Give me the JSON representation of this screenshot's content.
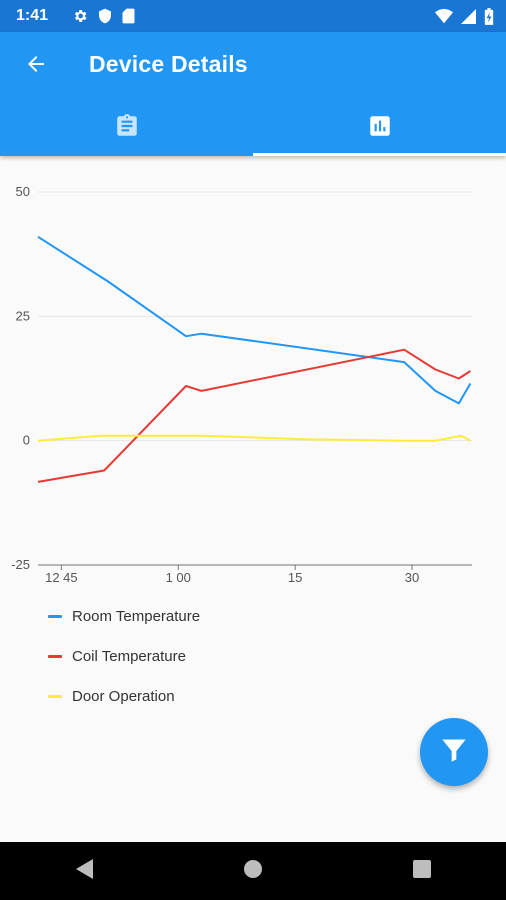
{
  "status_bar": {
    "time": "1:41",
    "icons_left": [
      "gear-icon",
      "shield-icon",
      "sd-card-icon"
    ],
    "icons_right": [
      "wifi-icon",
      "signal-icon",
      "battery-charging-icon"
    ]
  },
  "app_bar": {
    "title": "Device Details",
    "back_icon": "arrow-back-icon",
    "color": "#2196f3",
    "tabs": [
      {
        "icon": "clipboard-icon",
        "selected": false
      },
      {
        "icon": "bar-chart-icon",
        "selected": true
      }
    ]
  },
  "chart_data": {
    "type": "line",
    "y_ticks": [
      "50",
      "25",
      "0",
      "-25"
    ],
    "ylim": [
      -25,
      50
    ],
    "x_ticks": [
      "12 45",
      "1 00",
      "15",
      "30"
    ],
    "x_tick_minutes": [
      -15,
      0,
      15,
      30
    ],
    "xlim": [
      -18,
      37
    ],
    "series": [
      {
        "name": "Room Temperature",
        "color": "#2196f3",
        "points": [
          [
            -18,
            41
          ],
          [
            -9,
            32
          ],
          [
            1,
            21
          ],
          [
            3,
            21.5
          ],
          [
            29,
            15.8
          ],
          [
            33,
            10
          ],
          [
            36,
            7.5
          ],
          [
            37.5,
            11.5
          ]
        ]
      },
      {
        "name": "Coil Temperature",
        "color": "#e53935",
        "points": [
          [
            -18,
            -8.3
          ],
          [
            -9.5,
            -6
          ],
          [
            1,
            11
          ],
          [
            3,
            10
          ],
          [
            29,
            18.3
          ],
          [
            33,
            14.3
          ],
          [
            36,
            12.5
          ],
          [
            37.5,
            14
          ]
        ]
      },
      {
        "name": "Door Operation",
        "color": "#ffeb3b",
        "points": [
          [
            -18,
            0
          ],
          [
            -10,
            1
          ],
          [
            3,
            1
          ],
          [
            16,
            0.3
          ],
          [
            29,
            0
          ],
          [
            33,
            0
          ],
          [
            36.3,
            1
          ],
          [
            37.5,
            0
          ]
        ]
      }
    ],
    "grid": "horizontal",
    "legend_position": "bottom-left"
  },
  "legend": {
    "items": [
      {
        "label": "Room Temperature",
        "color": "#2196f3"
      },
      {
        "label": "Coil Temperature",
        "color": "#e53935"
      },
      {
        "label": "Door Operation",
        "color": "#ffeb3b"
      }
    ]
  },
  "fab": {
    "icon": "filter-icon",
    "color": "#2196f3"
  },
  "nav_bar": {
    "icons": [
      "back-triangle-icon",
      "home-circle-icon",
      "recents-square-icon"
    ]
  }
}
